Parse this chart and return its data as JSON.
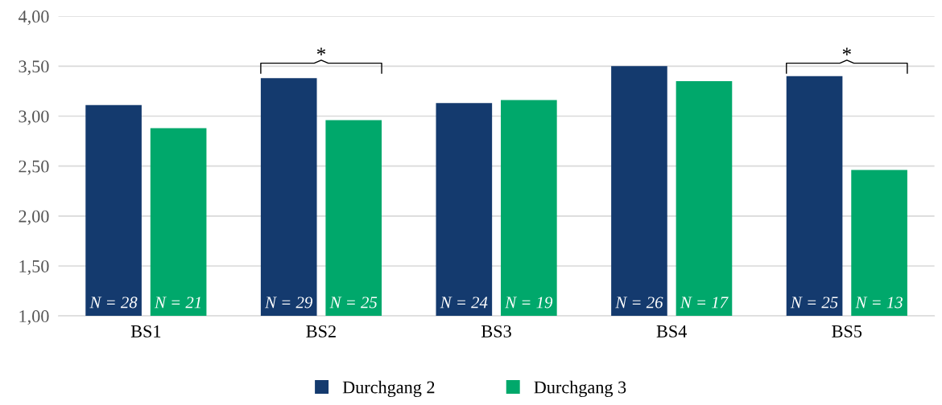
{
  "chart_data": {
    "type": "bar",
    "categories": [
      "BS1",
      "BS2",
      "BS3",
      "BS4",
      "BS5"
    ],
    "series": [
      {
        "name": "Durchgang 2",
        "color": "#143a6e",
        "values": [
          3.11,
          3.38,
          3.13,
          3.5,
          3.4
        ]
      },
      {
        "name": "Durchgang 3",
        "color": "#00a86b",
        "values": [
          2.88,
          2.96,
          3.16,
          3.35,
          2.46
        ]
      }
    ],
    "ylim": [
      1,
      4
    ],
    "yticks": [
      {
        "value": 1,
        "label": "1,00"
      },
      {
        "value": 1.5,
        "label": "1,50"
      },
      {
        "value": 2,
        "label": "2,00"
      },
      {
        "value": 2.5,
        "label": "2,50"
      },
      {
        "value": 3,
        "label": "3,00"
      },
      {
        "value": 3.5,
        "label": "3,50"
      },
      {
        "value": 4,
        "label": "4,00"
      }
    ],
    "grid": "y",
    "legend": "bottom",
    "annotations": [
      "*",
      "*",
      "N = 28",
      "N = 21",
      "N = 29",
      "N = 25",
      "N = 24",
      "N = 19",
      "N = 26",
      "N = 17",
      "N = 25",
      "N = 13"
    ]
  }
}
